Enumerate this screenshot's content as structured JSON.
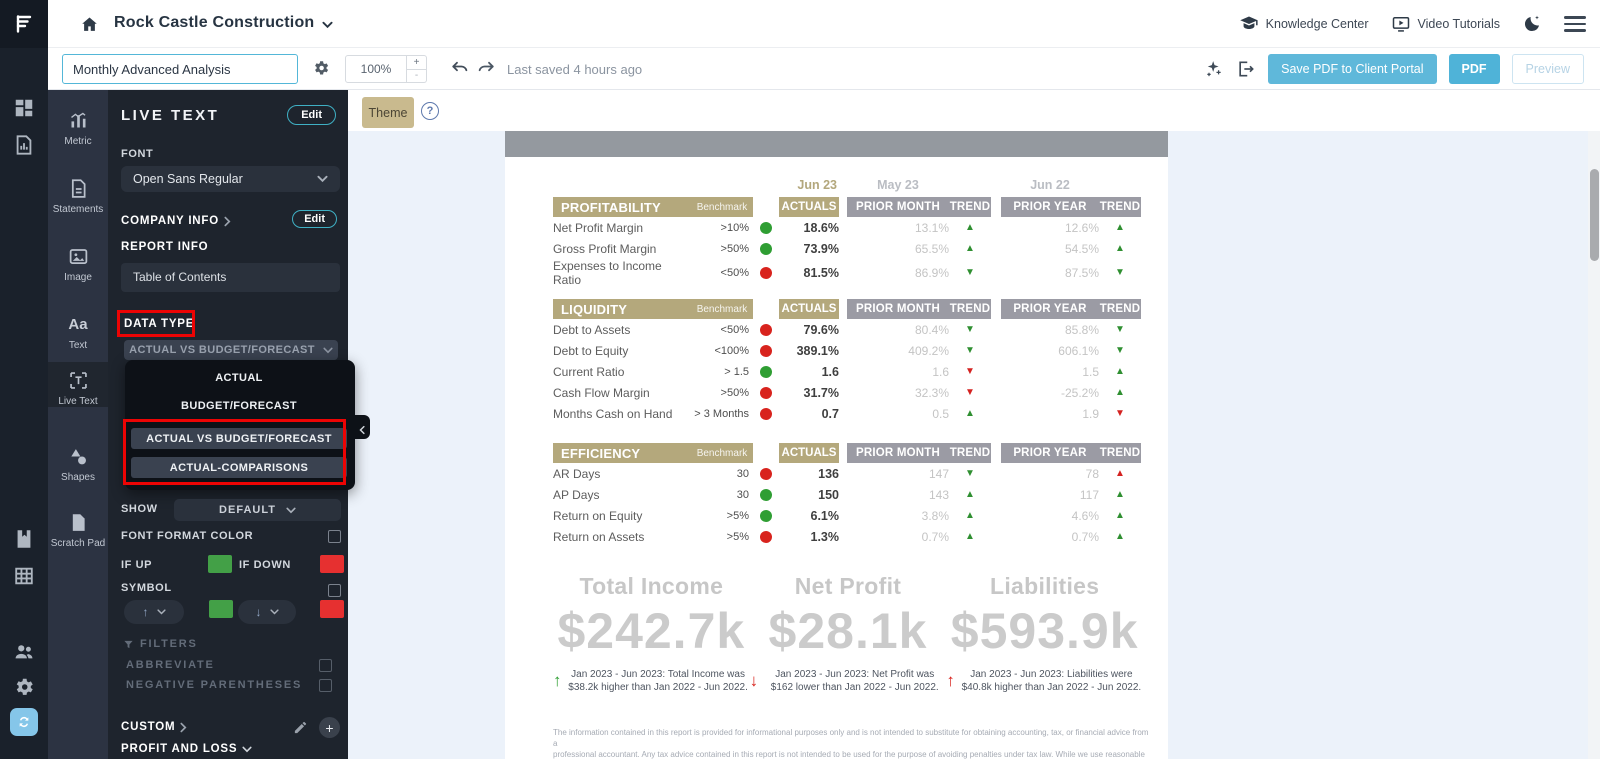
{
  "colors": {
    "accent_teal": "#3fb0c4",
    "accent_blue": "#5fb8da",
    "tan_header": "#b4a87c",
    "gray_header": "#9b9ba4",
    "up_green": "#2f9e33",
    "down_red": "#d8231d",
    "swatch_green": "#43a047",
    "swatch_red": "#e63030",
    "annotation_red": "#ec0404"
  },
  "topbar": {
    "company": "Rock Castle Construction",
    "knowledge_center": "Knowledge Center",
    "video_tutorials": "Video Tutorials"
  },
  "toolbar": {
    "report_name": "Monthly Advanced Analysis",
    "zoom": "100%",
    "zoom_plus": "+",
    "zoom_minus": "-",
    "last_saved": "Last saved 4 hours ago",
    "save_pdf_portal": "Save PDF to Client Portal",
    "pdf": "PDF",
    "preview": "Preview"
  },
  "sidebar": {
    "items": [
      {
        "label": "Metric",
        "icon": "metric",
        "active": false
      },
      {
        "label": "Statements",
        "icon": "statements",
        "active": false
      },
      {
        "label": "Image",
        "icon": "image",
        "active": false
      },
      {
        "label": "Text",
        "icon": "aa",
        "active": false
      },
      {
        "label": "Live Text",
        "icon": "livetext",
        "active": true
      },
      {
        "label": "Shapes",
        "icon": "shapes",
        "active": false
      },
      {
        "label": "Scratch Pad",
        "icon": "scratchpad",
        "active": false
      }
    ]
  },
  "panel": {
    "title": "LIVE TEXT",
    "edit": "Edit",
    "font_label": "FONT",
    "font_value": "Open Sans Regular",
    "company_info": "COMPANY INFO",
    "company_edit": "Edit",
    "report_info": "REPORT INFO",
    "table_of_contents": "Table of Contents",
    "data_type": {
      "label": "DATA TYPE",
      "selected": "ACTUAL VS BUDGET/FORECAST",
      "options": [
        {
          "label": "ACTUAL",
          "highlighted": false
        },
        {
          "label": "BUDGET/FORECAST",
          "highlighted": false
        },
        {
          "label": "ACTUAL VS BUDGET/FORECAST",
          "highlighted": true
        },
        {
          "label": "ACTUAL-COMPARISONS",
          "highlighted": true
        }
      ]
    },
    "show_label": "SHOW",
    "show_value": "DEFAULT",
    "font_format_color": "FONT FORMAT COLOR",
    "if_up": "IF UP",
    "if_down": "IF DOWN",
    "symbol": "SYMBOL",
    "filters": "FILTERS",
    "abbreviate": "ABBREVIATE",
    "negative_parentheses": "NEGATIVE PARENTHESES",
    "custom": "CUSTOM",
    "profit_and_loss": "PROFIT AND LOSS"
  },
  "canvas": {
    "theme": "Theme"
  },
  "report": {
    "periods": [
      "Jun 23",
      "May 23",
      "Jun 22"
    ],
    "column_headers": {
      "benchmark": "Benchmark",
      "actuals": "ACTUALS",
      "prior_month": "PRIOR MONTH",
      "trend": "TREND",
      "prior_year": "PRIOR YEAR"
    },
    "sections": [
      {
        "title": "PROFITABILITY",
        "rows": [
          {
            "label": "Net Profit Margin",
            "benchmark": ">10%",
            "status": "green",
            "actual": "18.6%",
            "prior_month": "13.1%",
            "pm_trend": "up-green",
            "prior_year": "12.6%",
            "py_trend": "up-green"
          },
          {
            "label": "Gross Profit Margin",
            "benchmark": ">50%",
            "status": "green",
            "actual": "73.9%",
            "prior_month": "65.5%",
            "pm_trend": "up-green",
            "prior_year": "54.5%",
            "py_trend": "up-green"
          },
          {
            "label": "Expenses to Income Ratio",
            "benchmark": "<50%",
            "status": "red",
            "actual": "81.5%",
            "prior_month": "86.9%",
            "pm_trend": "down-green",
            "prior_year": "87.5%",
            "py_trend": "down-green"
          }
        ]
      },
      {
        "title": "LIQUIDITY",
        "rows": [
          {
            "label": "Debt to Assets",
            "benchmark": "<50%",
            "status": "red",
            "actual": "79.6%",
            "prior_month": "80.4%",
            "pm_trend": "down-green",
            "prior_year": "85.8%",
            "py_trend": "down-green"
          },
          {
            "label": "Debt to Equity",
            "benchmark": "<100%",
            "status": "red",
            "actual": "389.1%",
            "prior_month": "409.2%",
            "pm_trend": "down-green",
            "prior_year": "606.1%",
            "py_trend": "down-green"
          },
          {
            "label": "Current Ratio",
            "benchmark": "> 1.5",
            "status": "green",
            "actual": "1.6",
            "prior_month": "1.6",
            "pm_trend": "down-red",
            "prior_year": "1.5",
            "py_trend": "up-green"
          },
          {
            "label": "Cash Flow Margin",
            "benchmark": ">50%",
            "status": "red",
            "actual": "31.7%",
            "prior_month": "32.3%",
            "pm_trend": "down-red",
            "prior_year": "-25.2%",
            "py_trend": "up-green"
          },
          {
            "label": "Months Cash on Hand",
            "benchmark": "> 3 Months",
            "status": "red",
            "actual": "0.7",
            "prior_month": "0.5",
            "pm_trend": "up-green",
            "prior_year": "1.9",
            "py_trend": "down-red"
          }
        ]
      },
      {
        "title": "EFFICIENCY",
        "rows": [
          {
            "label": "AR Days",
            "benchmark": "30",
            "status": "red",
            "actual": "136",
            "prior_month": "147",
            "pm_trend": "down-green",
            "prior_year": "78",
            "py_trend": "up-red"
          },
          {
            "label": "AP Days",
            "benchmark": "30",
            "status": "green",
            "actual": "150",
            "prior_month": "143",
            "pm_trend": "up-green",
            "prior_year": "117",
            "py_trend": "up-green"
          },
          {
            "label": "Return on Equity",
            "benchmark": ">5%",
            "status": "green",
            "actual": "6.1%",
            "prior_month": "3.8%",
            "pm_trend": "up-green",
            "prior_year": "4.6%",
            "py_trend": "up-green"
          },
          {
            "label": "Return on Assets",
            "benchmark": ">5%",
            "status": "red",
            "actual": "1.3%",
            "prior_month": "0.7%",
            "pm_trend": "up-green",
            "prior_year": "0.7%",
            "py_trend": "up-green"
          }
        ]
      }
    ],
    "kpis": [
      {
        "title": "Total Income",
        "value": "$242.7k",
        "arrow": "up-green",
        "caption": "Jan 2023 - Jun 2023: Total Income was $38.2k higher than Jan 2022 - Jun 2022."
      },
      {
        "title": "Net Profit",
        "value": "$28.1k",
        "arrow": "down-red",
        "caption": "Jan 2023 - Jun 2023: Net Profit was $162 lower than Jan 2022 - Jun 2022."
      },
      {
        "title": "Liabilities",
        "value": "$593.9k",
        "arrow": "up-red",
        "caption": "Jan 2023 - Jun 2023: Liabilities were $40.8k higher than Jan 2022 - Jun 2022."
      }
    ],
    "disclaimer_line1": "The information contained in this report is provided for informational purposes only and is not intended to substitute for obtaining accounting, tax, or financial advice from a",
    "disclaimer_line2": "professional accountant. Any tax advice contained in this report is not intended to be used for the purpose of avoiding penalties under tax law. While we use reasonable efforts to"
  }
}
